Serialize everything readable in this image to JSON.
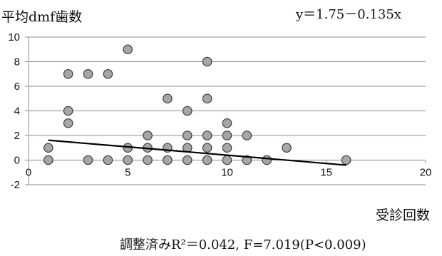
{
  "chart_data": {
    "type": "scatter",
    "ylabel": "平均dmf歯数",
    "xlabel": "受診回数",
    "equation": "y＝1.75－0.135x",
    "stats": "調整済みR²＝0.042, F=7.019(P<0.009)",
    "xlim": [
      0,
      20
    ],
    "ylim": [
      -2,
      10
    ],
    "x_ticks": [
      0,
      5,
      10,
      15,
      20
    ],
    "y_ticks": [
      -2,
      0,
      2,
      4,
      6,
      8,
      10
    ],
    "grid": "horizontal",
    "marker_color": "#a6a6a6",
    "regression": {
      "intercept": 1.75,
      "slope": -0.135,
      "x_range": [
        1,
        16
      ]
    },
    "points": [
      [
        1,
        0
      ],
      [
        1,
        1
      ],
      [
        2,
        7
      ],
      [
        2,
        4
      ],
      [
        2,
        3
      ],
      [
        3,
        7
      ],
      [
        3,
        0
      ],
      [
        4,
        7
      ],
      [
        4,
        0
      ],
      [
        5,
        9
      ],
      [
        5,
        1
      ],
      [
        5,
        0
      ],
      [
        6,
        2
      ],
      [
        6,
        1
      ],
      [
        6,
        0
      ],
      [
        7,
        5
      ],
      [
        7,
        1
      ],
      [
        7,
        0
      ],
      [
        8,
        4
      ],
      [
        8,
        2
      ],
      [
        8,
        1
      ],
      [
        8,
        0
      ],
      [
        9,
        8
      ],
      [
        9,
        5
      ],
      [
        9,
        2
      ],
      [
        9,
        1
      ],
      [
        9,
        0
      ],
      [
        10,
        3
      ],
      [
        10,
        2
      ],
      [
        10,
        1
      ],
      [
        10,
        0
      ],
      [
        11,
        2
      ],
      [
        11,
        0
      ],
      [
        12,
        0
      ],
      [
        13,
        1
      ],
      [
        16,
        0
      ]
    ]
  }
}
